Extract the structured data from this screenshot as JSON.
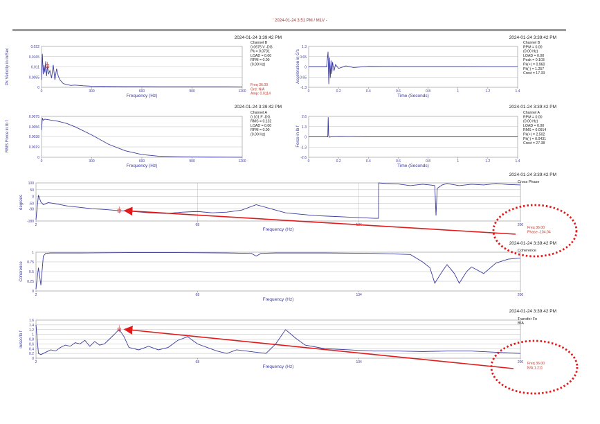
{
  "header": {
    "title": "' 2024-01-24 3:51 PM / M1V -"
  },
  "colors": {
    "trace": "#3b3b9e",
    "axis_text": "#3b3b9e",
    "annotation": "#c0392b",
    "arrow": "#e11b1b",
    "grid": "#bdbdbd"
  },
  "chart_data": [
    {
      "id": "pk_velocity",
      "type": "line",
      "title": "2024-01-24 3:39:42 PM",
      "xlabel": "Frequency (Hz)",
      "ylabel": "Pk Velocity in in/Sec",
      "xlim": [
        0,
        1200
      ],
      "ylim": [
        0,
        0.022
      ],
      "xticks": [
        "0",
        "300",
        "600",
        "900",
        "1200"
      ],
      "yticks": [
        "0",
        "0.0055",
        "0.011",
        "0.0165",
        "0.022"
      ],
      "info": [
        "Channel B",
        "0.0675 V -DG",
        "Pk = 0.0731",
        "LOAD = 0.00",
        "RPM = 0.00",
        "(0.00 Hz)"
      ],
      "cursor": [
        "Freq 36.00",
        "Ord: N/A",
        "Amp: 0.0114"
      ],
      "cursor_x": 36,
      "x": [
        0,
        5,
        10,
        15,
        20,
        25,
        30,
        36,
        42,
        50,
        60,
        70,
        80,
        90,
        100,
        110,
        120,
        130,
        150,
        175,
        200,
        250,
        300,
        400,
        500,
        600,
        700,
        800,
        900,
        1000,
        1100,
        1200
      ],
      "y": [
        0.004,
        0.018,
        0.007,
        0.012,
        0.008,
        0.014,
        0.006,
        0.0114,
        0.007,
        0.009,
        0.005,
        0.012,
        0.004,
        0.01,
        0.006,
        0.004,
        0.003,
        0.002,
        0.0015,
        0.001,
        0.0012,
        0.0008,
        0.0006,
        0.0005,
        0.0004,
        0.0004,
        0.0003,
        0.0003,
        0.0003,
        0.0003,
        0.0003,
        0.0002
      ]
    },
    {
      "id": "acceleration",
      "type": "line",
      "title": "2024-01-24 3:39:42 PM",
      "xlabel": "Time (Seconds)",
      "ylabel": "Acceleration in G's",
      "xlim": [
        0,
        1.4
      ],
      "ylim": [
        -1.3,
        1.3
      ],
      "xticks": [
        "0",
        "0.2",
        "0.4",
        "0.6",
        "0.8",
        "1",
        "1.2",
        "1.4"
      ],
      "yticks": [
        "-1.3",
        "-0.65",
        "0",
        "0.65",
        "1.3"
      ],
      "info": [
        "Channel B",
        "RPM = 0.00",
        "(0.00 Hz)",
        "LOAD = 0.00",
        "Peak = 0.103",
        "Pk(+) = 0.960",
        "Pk(-) = 1.257",
        "Crest = 17.33"
      ],
      "x": [
        0,
        0.1,
        0.12,
        0.13,
        0.135,
        0.14,
        0.145,
        0.15,
        0.155,
        0.16,
        0.17,
        0.18,
        0.2,
        0.25,
        0.3,
        0.4,
        0.6,
        0.8,
        1.0,
        1.2,
        1.4
      ],
      "y": [
        0,
        0,
        0,
        0.96,
        -1.1,
        0.6,
        -0.7,
        0.4,
        -0.45,
        0.3,
        -0.25,
        0.15,
        -0.1,
        0.06,
        -0.04,
        0.03,
        0.02,
        0.02,
        0.02,
        0.01,
        0.01
      ]
    },
    {
      "id": "rms_force",
      "type": "line",
      "title": "2024-01-24 3:39:42 PM",
      "xlabel": "Frequency (Hz)",
      "ylabel": "RMS Force in lb f",
      "xlim": [
        0,
        1200
      ],
      "ylim": [
        0,
        0.0075
      ],
      "xticks": [
        "0",
        "300",
        "600",
        "900",
        "1200"
      ],
      "yticks": [
        "0",
        "0.0019",
        "0.0038",
        "0.0056",
        "0.0075"
      ],
      "info": [
        "Channel A",
        "0.101 F -DG",
        "RMS = 0.132",
        "LOAD = 0.00",
        "RPM = 0.00",
        "(0.00 Hz)"
      ],
      "x": [
        0,
        5,
        10,
        20,
        40,
        60,
        80,
        100,
        150,
        200,
        300,
        400,
        500,
        600,
        700,
        800,
        900,
        1000,
        1100,
        1200
      ],
      "y": [
        0.005,
        0.0072,
        0.0068,
        0.007,
        0.0069,
        0.0068,
        0.0067,
        0.0066,
        0.0062,
        0.0056,
        0.0041,
        0.0024,
        0.0012,
        0.0005,
        0.0002,
        0.0001,
        5e-05,
        3e-05,
        2e-05,
        1e-05
      ]
    },
    {
      "id": "force_time",
      "type": "line",
      "title": "2024-01-24 3:39:42 PM",
      "xlabel": "Time (Seconds)",
      "ylabel": "Force in lb f",
      "xlim": [
        0,
        1.4
      ],
      "ylim": [
        -2.6,
        2.6
      ],
      "xticks": [
        "0",
        "0.2",
        "0.4",
        "0.6",
        "0.8",
        "1",
        "1.2",
        "1.4"
      ],
      "yticks": [
        "-2.6",
        "-1.3",
        "0",
        "1.3",
        "2.6"
      ],
      "info": [
        "Channel A",
        "RPM = 0.00",
        "(0.00 Hz)",
        "LOAD = 0.00",
        "RMS = 0.0914",
        "Pk(+) = 2.502",
        "Pk(-) = 0.0431",
        "Crest = 27.38"
      ],
      "x": [
        0,
        0.12,
        0.128,
        0.131,
        0.134,
        0.138,
        0.15,
        0.2,
        0.4,
        0.6,
        0.8,
        1.0,
        1.2,
        1.4
      ],
      "y": [
        0,
        0,
        0,
        2.5,
        0.2,
        -0.04,
        0,
        0.05,
        0,
        0,
        0,
        0,
        0,
        0
      ]
    },
    {
      "id": "cross_phase",
      "type": "line",
      "title": "2024-01-24 3:39:42 PM",
      "subtitle": "Cross Phase",
      "xlabel": "Frequency (Hz)",
      "ylabel": "degrees",
      "xlim": [
        2,
        200
      ],
      "ylim": [
        -180,
        100
      ],
      "xticks": [
        "2",
        "68",
        "134",
        "200"
      ],
      "yticks": [
        "100",
        "50",
        "0",
        "-50",
        "-90",
        "-180"
      ],
      "cursor": [
        "Freq 36.00",
        "Phase -104.04"
      ],
      "cursor_x": 36,
      "cursor_y": -104.04,
      "x": [
        2,
        3,
        4,
        5,
        7,
        9,
        12,
        15,
        20,
        25,
        30,
        36,
        42,
        48,
        55,
        62,
        68,
        74,
        80,
        86,
        92,
        98,
        104,
        110,
        116,
        122,
        128,
        134,
        140,
        142,
        142.1,
        145,
        150,
        155,
        160,
        163,
        165,
        165.5,
        166,
        168,
        170,
        175,
        180,
        185,
        190,
        195,
        200
      ],
      "y": [
        -170,
        10,
        -40,
        -60,
        -45,
        -50,
        -60,
        -70,
        -80,
        -90,
        -95,
        -104,
        -110,
        -120,
        -125,
        -115,
        -110,
        -120,
        -115,
        -100,
        -60,
        -90,
        -120,
        -130,
        -140,
        -145,
        -150,
        -155,
        -160,
        -160,
        100,
        95,
        92,
        80,
        90,
        85,
        80,
        -140,
        60,
        85,
        95,
        80,
        90,
        85,
        95,
        88,
        85
      ]
    },
    {
      "id": "coherence",
      "type": "line",
      "title": "2024-01-24 3:39:42 PM",
      "subtitle": "Coherence",
      "xlabel": "Frequency (Hz)",
      "ylabel": "Coherence",
      "xlim": [
        2,
        200
      ],
      "ylim": [
        0,
        1
      ],
      "xticks": [
        "2",
        "68",
        "134",
        "200"
      ],
      "yticks": [
        "0",
        "0.25",
        "0.5",
        "0.75",
        "1"
      ],
      "x": [
        2,
        3,
        4,
        5,
        6,
        8,
        10,
        20,
        40,
        60,
        80,
        90,
        92,
        94,
        100,
        120,
        140,
        155,
        160,
        163,
        165,
        168,
        170,
        173,
        175,
        178,
        180,
        185,
        190,
        195,
        200
      ],
      "y": [
        0.05,
        0.6,
        0.15,
        0.9,
        0.97,
        0.98,
        0.98,
        0.98,
        0.99,
        0.99,
        0.98,
        0.97,
        0.9,
        0.97,
        0.98,
        0.98,
        0.97,
        0.94,
        0.75,
        0.6,
        0.2,
        0.5,
        0.68,
        0.45,
        0.2,
        0.5,
        0.62,
        0.45,
        0.72,
        0.82,
        0.85
      ]
    },
    {
      "id": "transfer_fn",
      "type": "line",
      "title": "2024-01-24 3:39:42 PM",
      "subtitle": "Transfer Fn",
      "subtitle2": "B/A",
      "xlabel": "Frequency (Hz)",
      "ylabel": "in/sec/lb f",
      "xlim": [
        2,
        200
      ],
      "ylim": [
        0,
        1.6
      ],
      "xticks": [
        "2",
        "68",
        "134",
        "200"
      ],
      "yticks": [
        "0",
        "0.2",
        "0.4",
        "0.6",
        "0.8",
        "1",
        "1.2",
        "1.4",
        "1.6"
      ],
      "cursor": [
        "Freq 36.00",
        "B/A:1.211"
      ],
      "cursor_x": 36,
      "cursor_y": 1.211,
      "x": [
        2,
        3,
        4,
        6,
        8,
        10,
        12,
        14,
        16,
        18,
        20,
        22,
        24,
        26,
        28,
        30,
        32,
        34,
        36,
        38,
        40,
        44,
        48,
        52,
        56,
        60,
        64,
        68,
        72,
        76,
        80,
        84,
        88,
        92,
        96,
        100,
        104,
        108,
        112,
        120,
        130,
        140,
        150,
        160,
        170,
        180,
        190,
        200
      ],
      "y": [
        1.4,
        0.2,
        0.15,
        0.25,
        0.35,
        0.3,
        0.45,
        0.55,
        0.5,
        0.65,
        0.6,
        0.75,
        0.5,
        0.7,
        0.55,
        0.6,
        0.8,
        1.0,
        1.211,
        0.9,
        0.45,
        0.35,
        0.5,
        0.35,
        0.45,
        0.75,
        0.9,
        0.6,
        0.45,
        0.3,
        0.2,
        0.35,
        0.3,
        0.25,
        0.2,
        0.6,
        1.2,
        0.85,
        0.55,
        0.4,
        0.35,
        0.3,
        0.3,
        0.28,
        0.3,
        0.3,
        0.25,
        0.2
      ]
    }
  ]
}
